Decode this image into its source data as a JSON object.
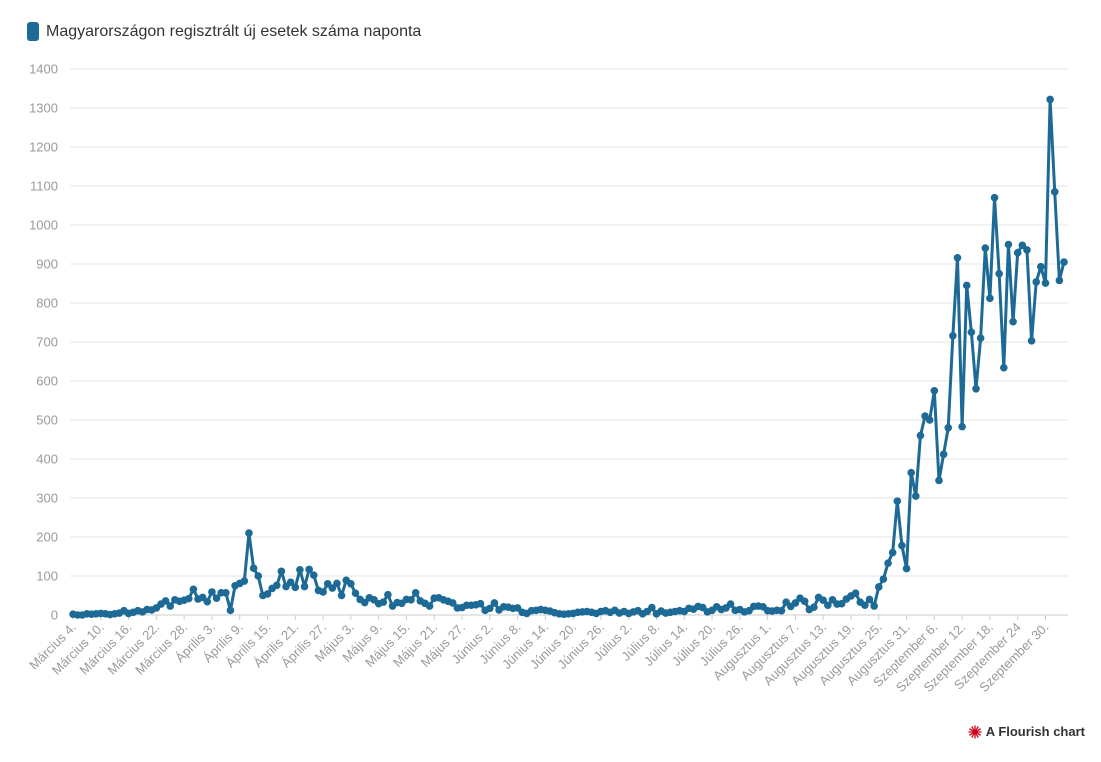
{
  "legend": {
    "label": "Magyarországon regisztrált új esetek száma naponta",
    "color": "#1d6a96"
  },
  "credit": {
    "text": "A Flourish chart",
    "logo_icon": "flourish-logo-icon",
    "logo_color": "#d0021b"
  },
  "chart_data": {
    "type": "line",
    "title": "",
    "xlabel": "",
    "ylabel": "",
    "ylim": [
      0,
      1400
    ],
    "yticks": [
      0,
      100,
      200,
      300,
      400,
      500,
      600,
      700,
      800,
      900,
      1000,
      1100,
      1200,
      1300,
      1400
    ],
    "grid": true,
    "legend_position": "top-left",
    "start_date": "2020-03-04",
    "x_tick_labels": [
      "Március 4.",
      "Március 10.",
      "Március 16.",
      "Március 22.",
      "Március 28.",
      "Április 3.",
      "Április 9.",
      "Április 15.",
      "Április 21.",
      "Április 27.",
      "Május 3.",
      "Május 9.",
      "Május 15.",
      "Május 21.",
      "Május 27.",
      "Június 2.",
      "Június 8.",
      "Június 14.",
      "Június 20.",
      "Június 26.",
      "Július 2.",
      "Július 8.",
      "Július 14.",
      "Július 20.",
      "Július 26.",
      "Augusztus 1.",
      "Augusztus 7.",
      "Augusztus 13.",
      "Augusztus 19.",
      "Augusztus 25.",
      "Augusztus 31.",
      "Szeptember 6.",
      "Szeptember 12.",
      "Szeptember 18.",
      "Szeptember 24",
      "Szeptember 30."
    ],
    "series": [
      {
        "name": "Magyarországon regisztrált új esetek száma naponta",
        "color": "#1d6a96",
        "values": [
          2,
          0,
          0,
          3,
          2,
          3,
          4,
          3,
          1,
          3,
          5,
          11,
          4,
          7,
          11,
          8,
          14,
          13,
          18,
          28,
          36,
          23,
          39,
          35,
          38,
          42,
          66,
          41,
          45,
          34,
          59,
          43,
          57,
          57,
          12,
          75,
          81,
          87,
          210,
          120,
          100,
          50,
          54,
          68,
          76,
          112,
          73,
          84,
          71,
          116,
          73,
          117,
          102,
          63,
          59,
          80,
          69,
          81,
          50,
          89,
          80,
          56,
          40,
          32,
          44,
          39,
          29,
          33,
          52,
          23,
          32,
          30,
          40,
          39,
          57,
          36,
          30,
          23,
          43,
          44,
          39,
          35,
          31,
          18,
          19,
          25,
          25,
          26,
          29,
          12,
          17,
          31,
          13,
          21,
          20,
          17,
          18,
          7,
          4,
          11,
          12,
          14,
          12,
          10,
          6,
          3,
          2,
          3,
          4,
          7,
          8,
          9,
          7,
          4,
          9,
          11,
          7,
          12,
          5,
          9,
          4,
          8,
          11,
          3,
          9,
          19,
          3,
          10,
          5,
          7,
          9,
          11,
          9,
          17,
          15,
          22,
          19,
          8,
          12,
          21,
          14,
          18,
          28,
          12,
          14,
          8,
          11,
          22,
          23,
          21,
          11,
          10,
          12,
          11,
          33,
          22,
          31,
          43,
          35,
          14,
          20,
          45,
          38,
          25,
          39,
          28,
          29,
          41,
          49,
          56,
          33,
          25,
          40,
          23,
          72,
          92,
          133,
          160,
          292,
          178,
          119,
          365,
          305,
          460,
          510,
          500,
          575,
          345,
          412,
          480,
          716,
          916,
          483,
          845,
          725,
          580,
          710,
          941,
          812,
          1070,
          875,
          634,
          950,
          752,
          929,
          948,
          936,
          703,
          854,
          893,
          851,
          1322,
          1085,
          858,
          905
        ]
      }
    ]
  }
}
